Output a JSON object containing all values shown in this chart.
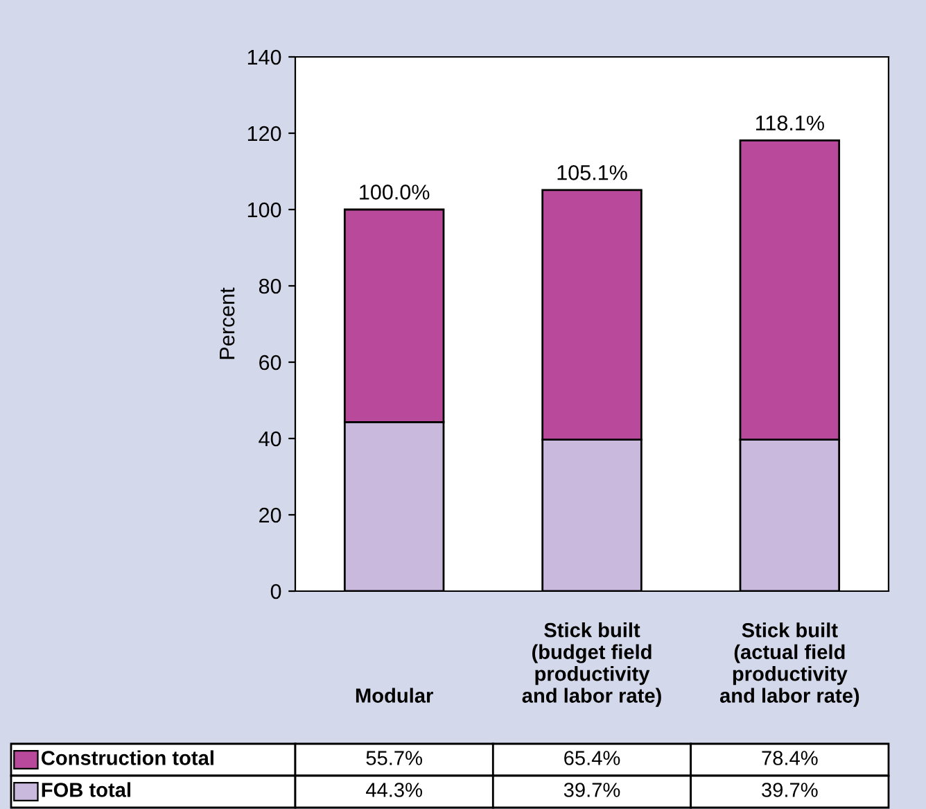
{
  "chart_data": {
    "type": "bar",
    "stacked": true,
    "ylabel": "Percent",
    "categories": [
      "Modular",
      "Stick built\n(budget field\nproductivity\nand labor rate)",
      "Stick built\n(actual field\nproductivity\nand labor rate)"
    ],
    "series": [
      {
        "name": "FOB total",
        "color": "#c9b9dc",
        "values": [
          44.3,
          39.7,
          39.7
        ],
        "value_labels": [
          "44.3%",
          "39.7%",
          "39.7%"
        ]
      },
      {
        "name": "Construction total",
        "color": "#b94a9b",
        "values": [
          55.7,
          65.4,
          78.4
        ],
        "value_labels": [
          "55.7%",
          "65.4%",
          "78.4%"
        ]
      }
    ],
    "totals": [
      "100.0%",
      "105.1%",
      "118.1%"
    ],
    "legend": "bottom",
    "ylim": [
      0,
      140
    ],
    "yticks": [
      0,
      20,
      40,
      60,
      80,
      100,
      120,
      140
    ]
  }
}
